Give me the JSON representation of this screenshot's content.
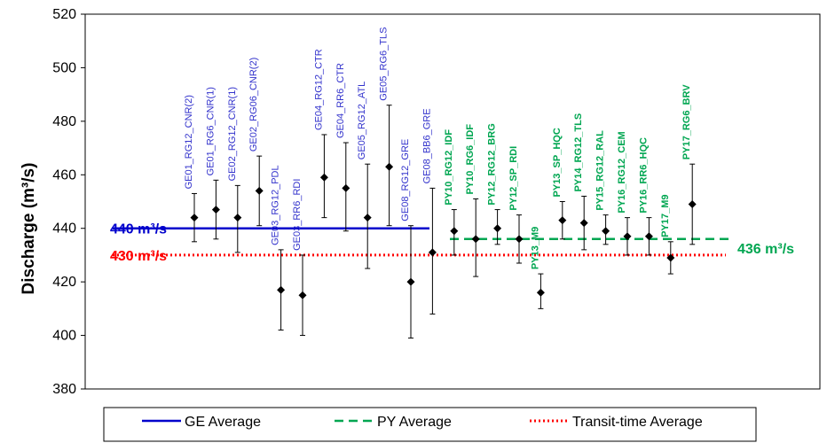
{
  "chart_data": {
    "type": "scatter",
    "xlabel": "",
    "ylabel": "Discharge (m³/s)",
    "ylim": [
      380,
      520
    ],
    "yticks": [
      380,
      400,
      420,
      440,
      460,
      480,
      500,
      520
    ],
    "grid": false,
    "legend_placement": "bottom",
    "points": [
      {
        "label": "GE01_RG12_CNR(2)",
        "group": "GE",
        "value": 444,
        "low": 435,
        "high": 453
      },
      {
        "label": "GE01_RG6_CNR(1)",
        "group": "GE",
        "value": 447,
        "low": 436,
        "high": 458
      },
      {
        "label": "GE02_RG12_CNR(1)",
        "group": "GE",
        "value": 444,
        "low": 431,
        "high": 456
      },
      {
        "label": "GE02_RG06_CNR(2)",
        "group": "GE",
        "value": 454,
        "low": 441,
        "high": 467
      },
      {
        "label": "GE03_RG12_PDL",
        "group": "GE",
        "value": 417,
        "low": 402,
        "high": 432
      },
      {
        "label": "GE03_RR6_RDI",
        "group": "GE",
        "value": 415,
        "low": 400,
        "high": 430
      },
      {
        "label": "GE04_RG12_CTR",
        "group": "GE",
        "value": 459,
        "low": 444,
        "high": 475
      },
      {
        "label": "GE04_RR6_CTR",
        "group": "GE",
        "value": 455,
        "low": 439,
        "high": 472
      },
      {
        "label": "GE05_RG12_ATL",
        "group": "GE",
        "value": 444,
        "low": 425,
        "high": 464
      },
      {
        "label": "GE05_RG6_TLS",
        "group": "GE",
        "value": 463,
        "low": 441,
        "high": 486
      },
      {
        "label": "GE08_RG12_GRE",
        "group": "GE",
        "value": 420,
        "low": 399,
        "high": 441
      },
      {
        "label": "GE08_BB6_GRE",
        "group": "GE",
        "value": 431,
        "low": 408,
        "high": 455
      },
      {
        "label": "PY10_RG12_IDF",
        "group": "PY",
        "value": 439,
        "low": 430,
        "high": 447
      },
      {
        "label": "PY10_RG6_IDF",
        "group": "PY",
        "value": 436,
        "low": 422,
        "high": 451
      },
      {
        "label": "PY12_RG12_BRG",
        "group": "PY",
        "value": 440,
        "low": 434,
        "high": 447
      },
      {
        "label": "PY12_SP_RDI",
        "group": "PY",
        "value": 436,
        "low": 427,
        "high": 445
      },
      {
        "label": "PY13_M9",
        "group": "PY",
        "value": 416,
        "low": 410,
        "high": 423
      },
      {
        "label": "PY13_SP_HQC",
        "group": "PY",
        "value": 443,
        "low": 436,
        "high": 450
      },
      {
        "label": "PY14_RG12_TLS",
        "group": "PY",
        "value": 442,
        "low": 432,
        "high": 452
      },
      {
        "label": "PY15_RG12_RAL",
        "group": "PY",
        "value": 439,
        "low": 434,
        "high": 445
      },
      {
        "label": "PY16_RG12_CEM",
        "group": "PY",
        "value": 437,
        "low": 430,
        "high": 444
      },
      {
        "label": "PY16_RR6_HQC",
        "group": "PY",
        "value": 437,
        "low": 430,
        "high": 444
      },
      {
        "label": "PY17_M9",
        "group": "PY",
        "value": 429,
        "low": 423,
        "high": 435
      },
      {
        "label": "PY17_RG6_BRV",
        "group": "PY",
        "value": 449,
        "low": 434,
        "high": 464
      }
    ],
    "averages": [
      {
        "name": "GE Average",
        "value": 440,
        "label": "440 m³/s",
        "color": "#0000cc",
        "style": "solid",
        "x_from": 0,
        "x_to": 11
      },
      {
        "name": "PY Average",
        "value": 436,
        "label": "436 m³/s",
        "color": "#00a651",
        "style": "dashed",
        "x_from": 12,
        "x_to": 23
      },
      {
        "name": "Transit-time Average",
        "value": 430,
        "label": "430 m³/s",
        "color": "#ff0000",
        "style": "dotted",
        "x_from": 0,
        "x_to": 23
      }
    ],
    "group_colors": {
      "GE": "#3333cc",
      "PY": "#00a651"
    },
    "marker_color": "#000000",
    "legend": [
      {
        "name": "GE Average",
        "color": "#0000cc",
        "style": "solid"
      },
      {
        "name": "PY Average",
        "color": "#00a651",
        "style": "dashed"
      },
      {
        "name": "Transit-time Average",
        "color": "#ff0000",
        "style": "dotted"
      }
    ]
  }
}
